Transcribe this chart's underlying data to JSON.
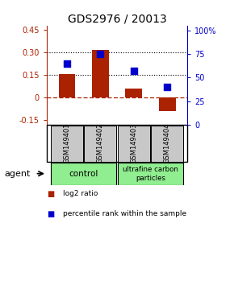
{
  "title": "GDS2976 / 20013",
  "samples": [
    "GSM149401",
    "GSM149402",
    "GSM149403",
    "GSM149404"
  ],
  "log2_ratios": [
    0.16,
    0.32,
    0.06,
    -0.09
  ],
  "percentile_ranks": [
    65,
    75,
    57,
    40
  ],
  "bar_color": "#AA2200",
  "dot_color": "#0000CC",
  "ylim_left": [
    -0.18,
    0.48
  ],
  "ylim_right": [
    0,
    105
  ],
  "yticks_left": [
    -0.15,
    0.0,
    0.15,
    0.3,
    0.45
  ],
  "ytick_labels_left": [
    "-0.15",
    "0",
    "0.15",
    "0.30",
    "0.45"
  ],
  "yticks_right": [
    0,
    25,
    50,
    75,
    100
  ],
  "ytick_labels_right": [
    "0",
    "25",
    "50",
    "75",
    "100%"
  ],
  "hlines": [
    0.15,
    0.3
  ],
  "zero_line": 0.0,
  "legend_items": [
    {
      "color": "#AA2200",
      "label": "log2 ratio"
    },
    {
      "color": "#0000CC",
      "label": "percentile rank within the sample"
    }
  ],
  "bar_width": 0.5,
  "dot_size": 35,
  "sample_box_color": "#C8C8C8",
  "group_box_color": "#90EE90",
  "agent_label": "agent"
}
